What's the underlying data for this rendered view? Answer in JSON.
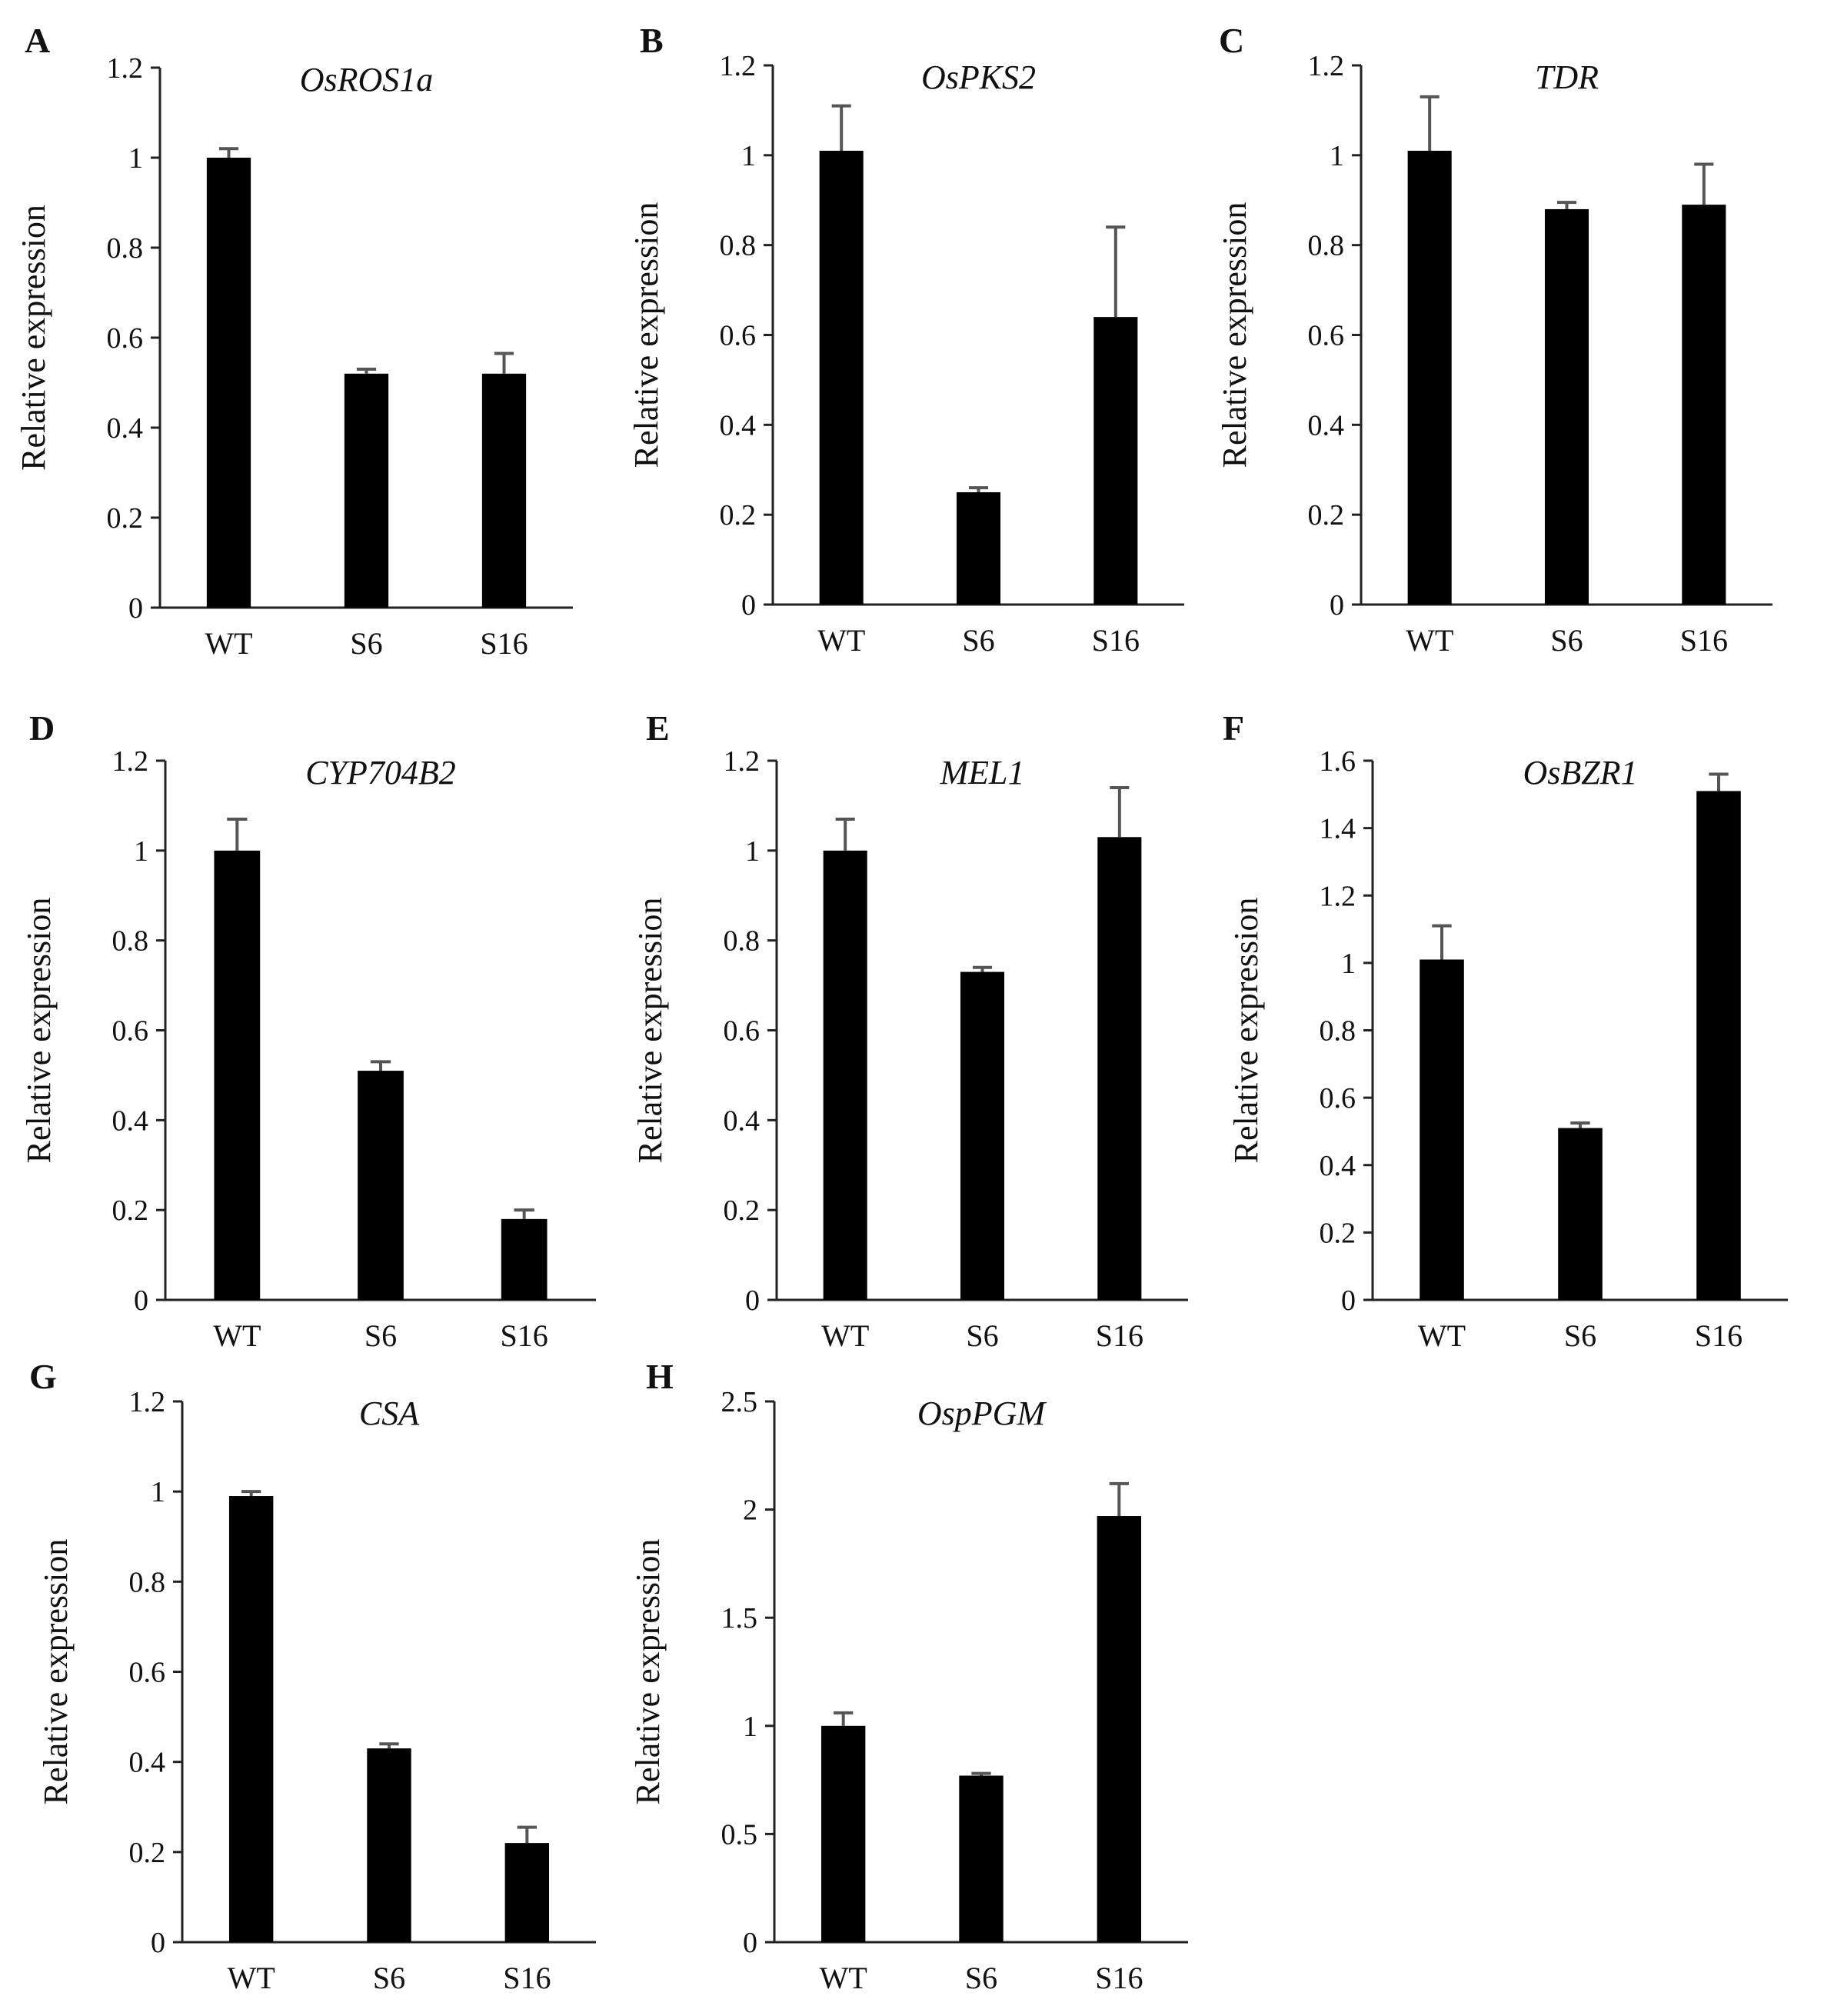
{
  "figure": {
    "background": "#ffffff",
    "bar_color": "#000000",
    "error_color": "#555555"
  },
  "chart_data": [
    {
      "panel": "A",
      "type": "bar",
      "title": "OsROS1a",
      "ylabel": "Relative expression",
      "xlabel": "",
      "categories": [
        "WT",
        "S6",
        "S16"
      ],
      "values": [
        1.0,
        0.52,
        0.52
      ],
      "errors": [
        0.02,
        0.01,
        0.045
      ],
      "ylim": [
        0,
        1.2
      ],
      "yticks": [
        0,
        0.2,
        0.4,
        0.6,
        0.8,
        1,
        1.2
      ],
      "ytick_labels": [
        "0",
        "0.2",
        "0.4",
        "0.6",
        "0.8",
        "1",
        "1.2"
      ]
    },
    {
      "panel": "B",
      "type": "bar",
      "title": "OsPKS2",
      "ylabel": "Relative expression",
      "xlabel": "",
      "categories": [
        "WT",
        "S6",
        "S16"
      ],
      "values": [
        1.01,
        0.25,
        0.64
      ],
      "errors": [
        0.1,
        0.01,
        0.2
      ],
      "ylim": [
        0,
        1.2
      ],
      "yticks": [
        0,
        0.2,
        0.4,
        0.6,
        0.8,
        1,
        1.2
      ],
      "ytick_labels": [
        "0",
        "0.2",
        "0.4",
        "0.6",
        "0.8",
        "1",
        "1.2"
      ]
    },
    {
      "panel": "C",
      "type": "bar",
      "title": "TDR",
      "ylabel": "Relative expression",
      "xlabel": "",
      "categories": [
        "WT",
        "S6",
        "S16"
      ],
      "values": [
        1.01,
        0.88,
        0.89
      ],
      "errors": [
        0.12,
        0.015,
        0.09
      ],
      "ylim": [
        0,
        1.2
      ],
      "yticks": [
        0,
        0.2,
        0.4,
        0.6,
        0.8,
        1,
        1.2
      ],
      "ytick_labels": [
        "0",
        "0.2",
        "0.4",
        "0.6",
        "0.8",
        "1",
        "1.2"
      ]
    },
    {
      "panel": "D",
      "type": "bar",
      "title": "CYP704B2",
      "ylabel": "Relative expression",
      "xlabel": "",
      "categories": [
        "WT",
        "S6",
        "S16"
      ],
      "values": [
        1.0,
        0.51,
        0.18
      ],
      "errors": [
        0.07,
        0.02,
        0.02
      ],
      "ylim": [
        0,
        1.2
      ],
      "yticks": [
        0,
        0.2,
        0.4,
        0.6,
        0.8,
        1,
        1.2
      ],
      "ytick_labels": [
        "0",
        "0.2",
        "0.4",
        "0.6",
        "0.8",
        "1",
        "1.2"
      ]
    },
    {
      "panel": "E",
      "type": "bar",
      "title": "MEL1",
      "ylabel": "Relative expression",
      "xlabel": "",
      "categories": [
        "WT",
        "S6",
        "S16"
      ],
      "values": [
        1.0,
        0.73,
        1.03
      ],
      "errors": [
        0.07,
        0.01,
        0.11
      ],
      "ylim": [
        0,
        1.2
      ],
      "yticks": [
        0,
        0.2,
        0.4,
        0.6,
        0.8,
        1,
        1.2
      ],
      "ytick_labels": [
        "0",
        "0.2",
        "0.4",
        "0.6",
        "0.8",
        "1",
        "1.2"
      ]
    },
    {
      "panel": "F",
      "type": "bar",
      "title": "OsBZR1",
      "ylabel": "Relative expression",
      "xlabel": "",
      "categories": [
        "WT",
        "S6",
        "S16"
      ],
      "values": [
        1.01,
        0.51,
        1.51
      ],
      "errors": [
        0.1,
        0.015,
        0.05
      ],
      "ylim": [
        0,
        1.6
      ],
      "yticks": [
        0,
        0.2,
        0.4,
        0.6,
        0.8,
        1,
        1.2,
        1.4,
        1.6
      ],
      "ytick_labels": [
        "0",
        "0.2",
        "0.4",
        "0.6",
        "0.8",
        "1",
        "1.2",
        "1.4",
        "1.6"
      ]
    },
    {
      "panel": "G",
      "type": "bar",
      "title": "CSA",
      "ylabel": "Relative expression",
      "xlabel": "",
      "categories": [
        "WT",
        "S6",
        "S16"
      ],
      "values": [
        0.99,
        0.43,
        0.22
      ],
      "errors": [
        0.01,
        0.01,
        0.035
      ],
      "ylim": [
        0,
        1.2
      ],
      "yticks": [
        0,
        0.2,
        0.4,
        0.6,
        0.8,
        1,
        1.2
      ],
      "ytick_labels": [
        "0",
        "0.2",
        "0.4",
        "0.6",
        "0.8",
        "1",
        "1.2"
      ]
    },
    {
      "panel": "H",
      "type": "bar",
      "title": "OspPGM",
      "ylabel": "Relative expression",
      "xlabel": "",
      "categories": [
        "WT",
        "S6",
        "S16"
      ],
      "values": [
        1.0,
        0.77,
        1.97
      ],
      "errors": [
        0.06,
        0.01,
        0.15
      ],
      "ylim": [
        0,
        2.5
      ],
      "yticks": [
        0,
        0.5,
        1,
        1.5,
        2,
        2.5
      ],
      "ytick_labels": [
        "0",
        "0.5",
        "1",
        "1.5",
        "2",
        "2.5"
      ]
    }
  ]
}
